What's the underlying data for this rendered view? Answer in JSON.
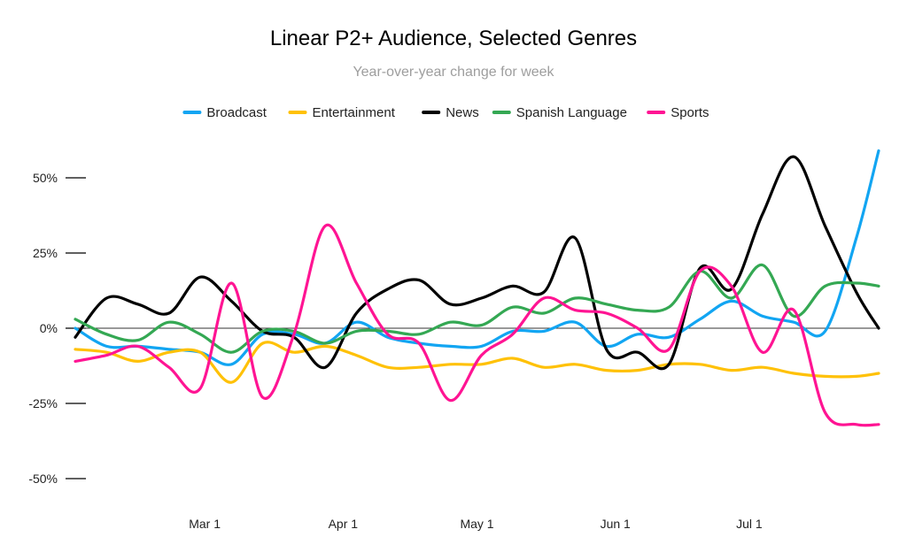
{
  "chart_data": {
    "type": "line",
    "title": "Linear P2+ Audience, Selected Genres",
    "subtitle": "Year-over-year change for week",
    "xlabel": "",
    "ylabel": "",
    "legend_position": "top",
    "grid": false,
    "zero_line": true,
    "x_range": [
      "2020-02-01",
      "2020-07-30"
    ],
    "ylim": [
      -60,
      65
    ],
    "y_ticks": [
      {
        "value": 50,
        "label": "50%"
      },
      {
        "value": 25,
        "label": "25%"
      },
      {
        "value": 0,
        "label": "0%"
      },
      {
        "value": -25,
        "label": "-25%"
      },
      {
        "value": -50,
        "label": "-50%"
      }
    ],
    "x_ticks": [
      {
        "date": "2020-03-01",
        "label": "Mar 1"
      },
      {
        "date": "2020-04-01",
        "label": "Apr 1"
      },
      {
        "date": "2020-05-01",
        "label": "May 1"
      },
      {
        "date": "2020-06-01",
        "label": "Jun 1"
      },
      {
        "date": "2020-07-01",
        "label": "Jul 1"
      }
    ],
    "x": [
      "2020-02-01",
      "2020-02-08",
      "2020-02-15",
      "2020-02-22",
      "2020-02-29",
      "2020-03-07",
      "2020-03-14",
      "2020-03-21",
      "2020-03-28",
      "2020-04-04",
      "2020-04-11",
      "2020-04-18",
      "2020-04-25",
      "2020-05-02",
      "2020-05-09",
      "2020-05-16",
      "2020-05-23",
      "2020-05-30",
      "2020-06-06",
      "2020-06-13",
      "2020-06-20",
      "2020-06-27",
      "2020-07-04",
      "2020-07-11",
      "2020-07-18",
      "2020-07-25",
      "2020-07-30"
    ],
    "series": [
      {
        "name": "Broadcast",
        "color": "#12a5f2",
        "values": [
          0,
          -6,
          -6,
          -7,
          -8,
          -12,
          -2,
          -2,
          -5,
          2,
          -3,
          -5,
          -6,
          -6,
          -1,
          -1,
          2,
          -6,
          -2,
          -3,
          3,
          9,
          4,
          2,
          -1,
          30,
          59
        ]
      },
      {
        "name": "Entertainment",
        "color": "#ffc107",
        "values": [
          -7,
          -8,
          -11,
          -8,
          -8,
          -18,
          -5,
          -8,
          -6,
          -9,
          -13,
          -13,
          -12,
          -12,
          -10,
          -13,
          -12,
          -14,
          -14,
          -12,
          -12,
          -14,
          -13,
          -15,
          -16,
          -16,
          -15
        ]
      },
      {
        "name": "News",
        "color": "#000000",
        "values": [
          -3,
          10,
          8,
          5,
          17,
          9,
          -1,
          -3,
          -13,
          5,
          13,
          16,
          8,
          10,
          14,
          12,
          30,
          -7,
          -8,
          -12,
          20,
          13,
          38,
          57,
          34,
          12,
          0
        ]
      },
      {
        "name": "Spanish Language",
        "color": "#34a853",
        "values": [
          3,
          -2,
          -4,
          2,
          -2,
          -8,
          -1,
          -1,
          -5,
          -1,
          -1,
          -2,
          2,
          1,
          7,
          5,
          10,
          8,
          6,
          7,
          19,
          10,
          21,
          4,
          14,
          15,
          14
        ]
      },
      {
        "name": "Sports",
        "color": "#ff1493",
        "values": [
          -11,
          -9,
          -6,
          -13,
          -20,
          15,
          -23,
          -2,
          34,
          15,
          -2,
          -5,
          -24,
          -9,
          -2,
          10,
          6,
          5,
          0,
          -7,
          19,
          14,
          -8,
          6,
          -28,
          -32,
          -32
        ]
      }
    ]
  }
}
